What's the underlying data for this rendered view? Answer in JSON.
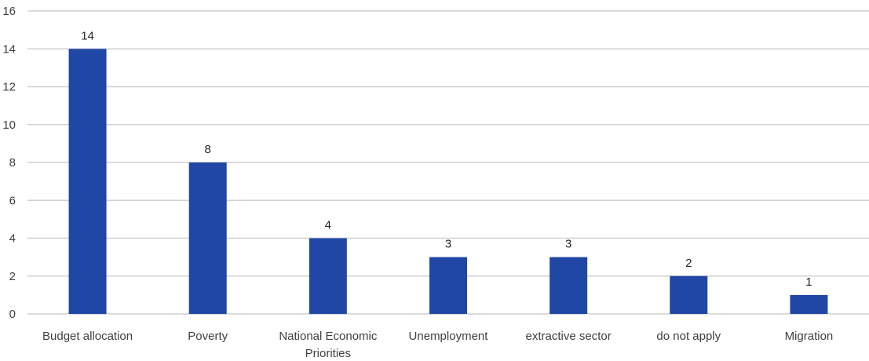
{
  "chart_data": {
    "type": "bar",
    "categories": [
      "Budget allocation",
      "Poverty",
      "National Economic Priorities",
      "Unemployment",
      "extractive sector",
      "do not apply",
      "Migration"
    ],
    "values": [
      14,
      8,
      4,
      3,
      3,
      2,
      1
    ],
    "ylim": [
      0,
      16
    ],
    "yticks": [
      0,
      2,
      4,
      6,
      8,
      10,
      12,
      14,
      16
    ],
    "grid": true,
    "data_labels": true,
    "colors": {
      "bar": "#2047a6",
      "grid": "#d0d0d0"
    }
  }
}
